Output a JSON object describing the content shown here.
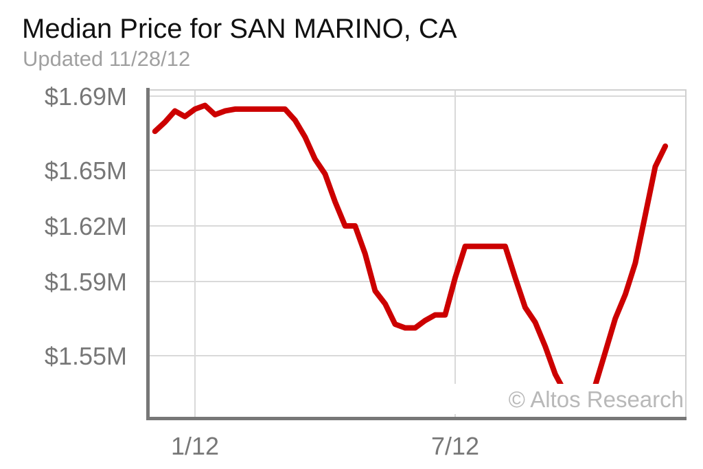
{
  "title": "Median Price for SAN MARINO, CA",
  "subtitle": "Updated 11/28/12",
  "watermark": "© Altos Research",
  "colors": {
    "line": "#cc0000",
    "grid": "#d9d9d9",
    "axis": "#777777",
    "text": "#777777"
  },
  "chart_data": {
    "type": "line",
    "title": "Median Price for SAN MARINO, CA",
    "subtitle": "Updated 11/28/12",
    "xlabel": "",
    "ylabel": "",
    "x_ticks": [
      "1/12",
      "7/12"
    ],
    "y_ticks": [
      "$1.69M",
      "$1.65M",
      "$1.62M",
      "$1.59M",
      "$1.55M"
    ],
    "ylim": [
      1.52,
      1.7
    ],
    "grid": true,
    "series": [
      {
        "x": [
          "2011-12-04",
          "2011-12-11",
          "2011-12-18",
          "2011-12-25",
          "2012-01-01",
          "2012-01-08",
          "2012-01-15",
          "2012-01-22",
          "2012-01-29",
          "2012-02-05",
          "2012-02-12",
          "2012-02-19",
          "2012-02-26",
          "2012-03-04",
          "2012-03-11",
          "2012-03-18",
          "2012-03-25",
          "2012-04-01",
          "2012-04-08",
          "2012-04-15",
          "2012-04-22",
          "2012-04-29",
          "2012-05-06",
          "2012-05-13",
          "2012-05-20",
          "2012-05-27",
          "2012-06-03",
          "2012-06-10",
          "2012-06-17",
          "2012-06-24",
          "2012-07-01",
          "2012-07-08",
          "2012-07-15",
          "2012-07-22",
          "2012-07-29",
          "2012-08-05",
          "2012-08-12",
          "2012-08-19",
          "2012-08-26",
          "2012-09-02",
          "2012-09-09",
          "2012-09-16",
          "2012-09-23",
          "2012-09-30",
          "2012-10-07",
          "2012-10-14",
          "2012-10-21",
          "2012-10-28",
          "2012-11-04",
          "2012-11-11",
          "2012-11-18",
          "2012-11-25"
        ],
        "values": [
          1.671,
          1.676,
          1.682,
          1.679,
          1.683,
          1.685,
          1.68,
          1.682,
          1.683,
          1.683,
          1.683,
          1.683,
          1.683,
          1.683,
          1.677,
          1.668,
          1.656,
          1.648,
          1.633,
          1.62,
          1.62,
          1.605,
          1.585,
          1.578,
          1.567,
          1.565,
          1.565,
          1.569,
          1.572,
          1.572,
          1.592,
          1.609,
          1.609,
          1.609,
          1.609,
          1.609,
          1.592,
          1.576,
          1.568,
          1.555,
          1.54,
          1.53,
          1.53,
          1.53,
          1.534,
          1.552,
          1.57,
          1.583,
          1.6,
          1.626,
          1.652,
          1.663
        ]
      }
    ]
  }
}
